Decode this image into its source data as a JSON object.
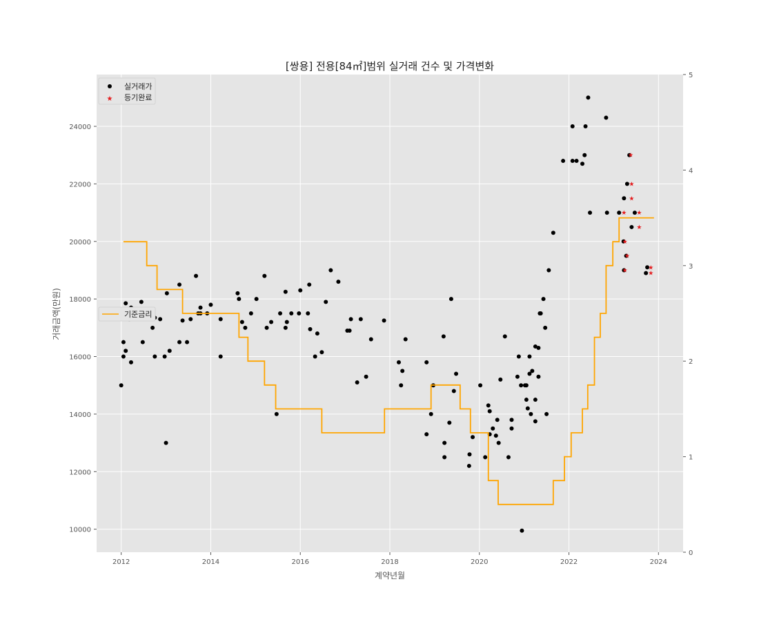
{
  "chart_data": {
    "type": "scatter",
    "title": "[쌍용] 전용[84㎡]범위 실거래 건수 및 가격변화",
    "xlabel": "계약년월",
    "ylabel": "거래금액(만원)",
    "x_ticks": [
      "2012",
      "2014",
      "2016",
      "2018",
      "2020",
      "2022",
      "2024"
    ],
    "y_ticks": [
      10000,
      12000,
      14000,
      16000,
      18000,
      20000,
      22000,
      24000
    ],
    "y2_ticks": [
      0,
      1,
      2,
      3,
      4,
      5
    ],
    "xlim": [
      2011.45,
      2024.55
    ],
    "ylim": [
      9200,
      25800
    ],
    "y2lim": [
      0,
      5
    ],
    "grid": true,
    "legend_upper": {
      "placement": "upper-left",
      "entries": [
        "실거래가",
        "등기완료"
      ]
    },
    "legend_lower": {
      "placement": "center-left",
      "entries": [
        "기준금리"
      ]
    },
    "colors": {
      "trade": "#000000",
      "registered": "#e41a1c",
      "rate": "#ffa500",
      "background": "#e5e5e5",
      "grid": "#ffffff"
    },
    "series": [
      {
        "name": "실거래가",
        "kind": "scatter",
        "points": [
          [
            2012.0,
            15000
          ],
          [
            2012.05,
            16000
          ],
          [
            2012.05,
            16500
          ],
          [
            2012.1,
            16200
          ],
          [
            2012.1,
            17850
          ],
          [
            2012.18,
            17300
          ],
          [
            2012.22,
            17700
          ],
          [
            2012.22,
            15800
          ],
          [
            2012.45,
            17900
          ],
          [
            2012.48,
            16500
          ],
          [
            2012.7,
            17000
          ],
          [
            2012.75,
            17350
          ],
          [
            2012.75,
            16000
          ],
          [
            2012.87,
            17300
          ],
          [
            2012.97,
            16000
          ],
          [
            2013.0,
            13000
          ],
          [
            2013.02,
            18200
          ],
          [
            2013.08,
            16200
          ],
          [
            2013.3,
            18500
          ],
          [
            2013.3,
            16500
          ],
          [
            2013.37,
            17250
          ],
          [
            2013.47,
            16500
          ],
          [
            2013.55,
            17300
          ],
          [
            2013.67,
            18800
          ],
          [
            2013.72,
            17500
          ],
          [
            2013.77,
            17500
          ],
          [
            2013.77,
            17700
          ],
          [
            2013.92,
            17500
          ],
          [
            2014.0,
            17800
          ],
          [
            2014.22,
            17300
          ],
          [
            2014.22,
            16000
          ],
          [
            2014.6,
            18200
          ],
          [
            2014.63,
            18000
          ],
          [
            2014.7,
            17200
          ],
          [
            2014.77,
            17000
          ],
          [
            2014.9,
            17500
          ],
          [
            2015.02,
            18000
          ],
          [
            2015.2,
            18800
          ],
          [
            2015.25,
            17000
          ],
          [
            2015.35,
            17200
          ],
          [
            2015.47,
            14000
          ],
          [
            2015.55,
            17500
          ],
          [
            2015.67,
            17000
          ],
          [
            2015.67,
            18250
          ],
          [
            2015.7,
            17200
          ],
          [
            2015.8,
            17500
          ],
          [
            2015.97,
            17500
          ],
          [
            2016.0,
            18300
          ],
          [
            2016.17,
            17500
          ],
          [
            2016.2,
            18500
          ],
          [
            2016.22,
            16950
          ],
          [
            2016.33,
            16000
          ],
          [
            2016.38,
            16800
          ],
          [
            2016.48,
            16150
          ],
          [
            2016.57,
            17900
          ],
          [
            2016.68,
            19000
          ],
          [
            2016.85,
            18600
          ],
          [
            2017.05,
            16900
          ],
          [
            2017.1,
            16900
          ],
          [
            2017.13,
            17300
          ],
          [
            2017.27,
            15100
          ],
          [
            2017.35,
            17300
          ],
          [
            2017.47,
            15300
          ],
          [
            2017.58,
            16600
          ],
          [
            2017.87,
            17250
          ],
          [
            2018.2,
            15800
          ],
          [
            2018.25,
            15000
          ],
          [
            2018.28,
            15500
          ],
          [
            2018.35,
            16600
          ],
          [
            2018.82,
            15800
          ],
          [
            2018.82,
            13300
          ],
          [
            2018.92,
            14000
          ],
          [
            2018.97,
            15000
          ],
          [
            2019.2,
            16700
          ],
          [
            2019.22,
            13000
          ],
          [
            2019.22,
            12500
          ],
          [
            2019.33,
            13700
          ],
          [
            2019.37,
            18000
          ],
          [
            2019.43,
            14800
          ],
          [
            2019.48,
            15400
          ],
          [
            2019.77,
            12200
          ],
          [
            2019.78,
            12600
          ],
          [
            2019.85,
            13200
          ],
          [
            2020.02,
            15000
          ],
          [
            2020.13,
            12500
          ],
          [
            2020.2,
            14300
          ],
          [
            2020.23,
            14100
          ],
          [
            2020.23,
            13300
          ],
          [
            2020.3,
            13500
          ],
          [
            2020.37,
            13250
          ],
          [
            2020.4,
            13800
          ],
          [
            2020.43,
            13000
          ],
          [
            2020.47,
            15200
          ],
          [
            2020.57,
            16700
          ],
          [
            2020.65,
            12500
          ],
          [
            2020.72,
            13800
          ],
          [
            2020.72,
            13500
          ],
          [
            2020.85,
            15300
          ],
          [
            2020.88,
            16000
          ],
          [
            2020.93,
            15000
          ],
          [
            2020.95,
            9950
          ],
          [
            2021.02,
            15000
          ],
          [
            2021.05,
            14500
          ],
          [
            2021.05,
            15000
          ],
          [
            2021.08,
            14200
          ],
          [
            2021.12,
            15400
          ],
          [
            2021.12,
            16000
          ],
          [
            2021.15,
            14000
          ],
          [
            2021.18,
            15500
          ],
          [
            2021.25,
            13750
          ],
          [
            2021.25,
            14500
          ],
          [
            2021.25,
            16350
          ],
          [
            2021.32,
            15300
          ],
          [
            2021.32,
            16300
          ],
          [
            2021.35,
            17500
          ],
          [
            2021.37,
            17500
          ],
          [
            2021.43,
            18000
          ],
          [
            2021.47,
            17000
          ],
          [
            2021.5,
            14000
          ],
          [
            2021.55,
            19000
          ],
          [
            2021.65,
            20300
          ],
          [
            2021.87,
            22800
          ],
          [
            2022.08,
            22800
          ],
          [
            2022.08,
            24000
          ],
          [
            2022.17,
            22800
          ],
          [
            2022.3,
            22700
          ],
          [
            2022.35,
            23000
          ],
          [
            2022.37,
            24000
          ],
          [
            2022.43,
            25000
          ],
          [
            2022.47,
            21000
          ],
          [
            2022.83,
            24300
          ],
          [
            2022.85,
            21000
          ],
          [
            2023.12,
            21000
          ],
          [
            2023.22,
            20000
          ],
          [
            2023.23,
            21500
          ],
          [
            2023.23,
            19000
          ],
          [
            2023.28,
            19500
          ],
          [
            2023.3,
            22000
          ],
          [
            2023.35,
            23000
          ],
          [
            2023.4,
            20500
          ],
          [
            2023.47,
            21000
          ],
          [
            2023.72,
            18900
          ],
          [
            2023.75,
            19100
          ]
        ]
      },
      {
        "name": "등기완료",
        "kind": "scatter-star",
        "points": [
          [
            2023.25,
            20000
          ],
          [
            2023.23,
            21000
          ],
          [
            2023.25,
            19000
          ],
          [
            2023.3,
            19500
          ],
          [
            2023.4,
            22000
          ],
          [
            2023.38,
            23000
          ],
          [
            2023.4,
            21500
          ],
          [
            2023.57,
            21000
          ],
          [
            2023.57,
            20500
          ],
          [
            2023.83,
            19100
          ],
          [
            2023.83,
            18900
          ]
        ]
      },
      {
        "name": "기준금리",
        "kind": "step",
        "axis": "right",
        "points": [
          [
            2012.05,
            3.25
          ],
          [
            2012.57,
            3.0
          ],
          [
            2012.8,
            2.75
          ],
          [
            2013.37,
            2.5
          ],
          [
            2014.63,
            2.25
          ],
          [
            2014.83,
            2.0
          ],
          [
            2015.2,
            1.75
          ],
          [
            2015.45,
            1.5
          ],
          [
            2016.48,
            1.25
          ],
          [
            2017.88,
            1.5
          ],
          [
            2018.92,
            1.75
          ],
          [
            2019.57,
            1.5
          ],
          [
            2019.8,
            1.25
          ],
          [
            2020.2,
            0.75
          ],
          [
            2020.42,
            0.5
          ],
          [
            2021.65,
            0.75
          ],
          [
            2021.9,
            1.0
          ],
          [
            2022.05,
            1.25
          ],
          [
            2022.3,
            1.5
          ],
          [
            2022.42,
            1.75
          ],
          [
            2022.57,
            2.25
          ],
          [
            2022.7,
            2.5
          ],
          [
            2022.83,
            3.0
          ],
          [
            2022.98,
            3.25
          ],
          [
            2023.12,
            3.5
          ],
          [
            2023.9,
            3.5
          ]
        ]
      }
    ]
  }
}
